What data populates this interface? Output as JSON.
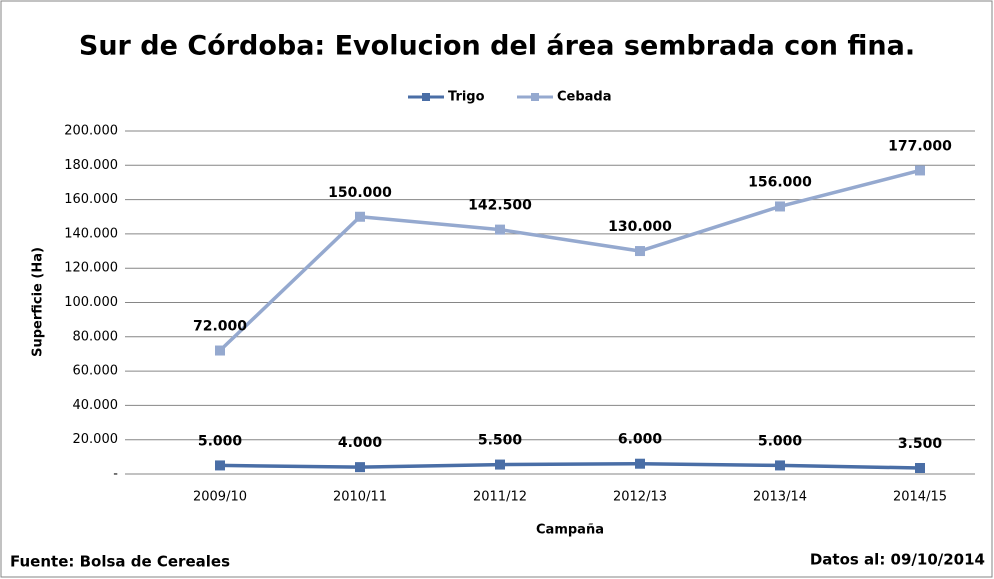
{
  "chart_data": {
    "type": "line",
    "title": "Sur de Córdoba: Evolucion del área sembrada con fina.",
    "x_label": "Campaña",
    "y_label": "Superficie (Ha)",
    "source": "Fuente: Bolsa de Cereales",
    "date_note": "Datos al: 09/10/2014",
    "categories": [
      "2009/10",
      "2010/11",
      "2011/12",
      "2012/13",
      "2013/14",
      "2014/15"
    ],
    "series": [
      {
        "name": "Trigo",
        "color": "#4a6ea6",
        "values": [
          5000,
          4000,
          5500,
          6000,
          5000,
          3500
        ],
        "value_labels": [
          "5.000",
          "4.000",
          "5.500",
          "6.000",
          "5.000",
          "3.500"
        ]
      },
      {
        "name": "Cebada",
        "color": "#95a9cf",
        "values": [
          72000,
          150000,
          142500,
          130000,
          156000,
          177000
        ],
        "value_labels": [
          "72.000",
          "150.000",
          "142.500",
          "130.000",
          "156.000",
          "177.000"
        ]
      }
    ],
    "ylim": [
      0,
      200000
    ],
    "yticks": [
      {
        "value": 0,
        "label": "-"
      },
      {
        "value": 20000,
        "label": "20.000"
      },
      {
        "value": 40000,
        "label": "40.000"
      },
      {
        "value": 60000,
        "label": "60.000"
      },
      {
        "value": 80000,
        "label": "80.000"
      },
      {
        "value": 100000,
        "label": "100.000"
      },
      {
        "value": 120000,
        "label": "120.000"
      },
      {
        "value": 140000,
        "label": "140.000"
      },
      {
        "value": 160000,
        "label": "160.000"
      },
      {
        "value": 180000,
        "label": "180.000"
      },
      {
        "value": 200000,
        "label": "200.000"
      }
    ],
    "grid": true,
    "legend": "top"
  }
}
